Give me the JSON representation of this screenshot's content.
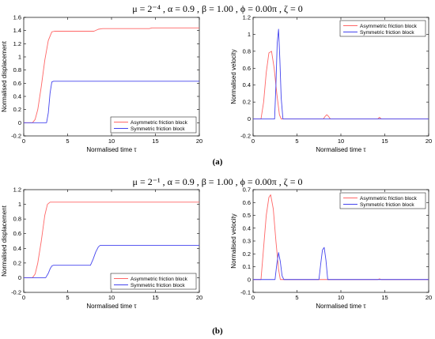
{
  "figure": {
    "panels": [
      {
        "title": "μ = 2⁻⁴ , α = 0.9 , β = 1.00 , ϕ = 0.00π , ζ = 0",
        "caption": "(a)"
      },
      {
        "title": "μ = 2⁻¹ , α = 0.9 , β = 1.00 , ϕ = 0.00π , ζ = 0",
        "caption": "(b)"
      }
    ]
  },
  "colors": {
    "asymmetric": "#ff6666",
    "symmetric": "#4444ee"
  },
  "chart_data": [
    {
      "type": "line",
      "xlabel": "Normalised time τ",
      "ylabel": "Normalised displacement",
      "xlim": [
        0,
        20
      ],
      "ylim": [
        -0.2,
        1.6
      ],
      "xticks": [
        0,
        5,
        10,
        15,
        20
      ],
      "yticks": [
        -0.2,
        0,
        0.2,
        0.4,
        0.6,
        0.8,
        1,
        1.2,
        1.4,
        1.6
      ],
      "legend": "bottom-right",
      "series": [
        {
          "name": "Asymmetric friction block",
          "color": "#ff6666",
          "x": [
            0,
            1.0,
            1.3,
            1.6,
            2.0,
            2.4,
            2.8,
            3.2,
            3.5,
            8.0,
            8.5,
            9.0,
            14.3,
            14.6,
            20
          ],
          "y": [
            0,
            0,
            0.05,
            0.2,
            0.55,
            0.95,
            1.25,
            1.38,
            1.39,
            1.39,
            1.42,
            1.43,
            1.43,
            1.44,
            1.44
          ]
        },
        {
          "name": "Symmetric friction block",
          "color": "#4444ee",
          "x": [
            0,
            2.6,
            2.8,
            3.0,
            3.2,
            3.4,
            20
          ],
          "y": [
            0,
            0,
            0.15,
            0.45,
            0.62,
            0.63,
            0.63
          ]
        }
      ]
    },
    {
      "type": "line",
      "xlabel": "Normalised time τ",
      "ylabel": "Normalised velocity",
      "xlim": [
        0,
        20
      ],
      "ylim": [
        -0.2,
        1.2
      ],
      "xticks": [
        0,
        5,
        10,
        15,
        20
      ],
      "yticks": [
        -0.2,
        0,
        0.2,
        0.4,
        0.6,
        0.8,
        1,
        1.2
      ],
      "legend": "top-right",
      "series": [
        {
          "name": "Asymmetric friction block",
          "color": "#ff6666",
          "x": [
            0,
            0.9,
            1.2,
            1.5,
            1.8,
            2.1,
            2.4,
            2.7,
            3.0,
            3.2,
            8.0,
            8.2,
            8.4,
            8.6,
            8.8,
            14.2,
            14.4,
            14.6,
            20
          ],
          "y": [
            0,
            0,
            0.2,
            0.55,
            0.78,
            0.8,
            0.6,
            0.3,
            0.05,
            0,
            0,
            0.03,
            0.05,
            0.03,
            0,
            0,
            0.02,
            0,
            0
          ]
        },
        {
          "name": "Symmetric friction block",
          "color": "#4444ee",
          "x": [
            0,
            2.45,
            2.6,
            2.75,
            2.9,
            3.05,
            3.2,
            3.4,
            20
          ],
          "y": [
            0,
            0,
            0.4,
            0.9,
            1.06,
            0.7,
            0.25,
            0,
            0
          ]
        }
      ]
    },
    {
      "type": "line",
      "xlabel": "Normalised time τ",
      "ylabel": "Normalised displacement",
      "xlim": [
        0,
        20
      ],
      "ylim": [
        -0.2,
        1.2
      ],
      "xticks": [
        0,
        5,
        10,
        15,
        20
      ],
      "yticks": [
        -0.2,
        0,
        0.2,
        0.4,
        0.6,
        0.8,
        1,
        1.2
      ],
      "legend": "bottom-right",
      "series": [
        {
          "name": "Asymmetric friction block",
          "color": "#ff6666",
          "x": [
            0,
            1.0,
            1.3,
            1.6,
            2.0,
            2.4,
            2.7,
            3.0,
            20
          ],
          "y": [
            0,
            0,
            0.05,
            0.2,
            0.5,
            0.85,
            1.0,
            1.03,
            1.03
          ]
        },
        {
          "name": "Symmetric friction block",
          "color": "#4444ee",
          "x": [
            0,
            2.5,
            2.8,
            3.0,
            3.2,
            3.4,
            7.6,
            7.9,
            8.2,
            8.5,
            8.7,
            20
          ],
          "y": [
            0,
            0,
            0.06,
            0.12,
            0.16,
            0.17,
            0.17,
            0.25,
            0.35,
            0.42,
            0.44,
            0.44
          ]
        }
      ]
    },
    {
      "type": "line",
      "xlabel": "Normalised time τ",
      "ylabel": "Normalised velocity",
      "xlim": [
        0,
        20
      ],
      "ylim": [
        -0.1,
        0.7
      ],
      "xticks": [
        0,
        5,
        10,
        15,
        20
      ],
      "yticks": [
        -0.1,
        0,
        0.1,
        0.2,
        0.3,
        0.4,
        0.5,
        0.6,
        0.7
      ],
      "legend": "top-right",
      "series": [
        {
          "name": "Asymmetric friction block",
          "color": "#ff6666",
          "x": [
            0,
            0.9,
            1.2,
            1.5,
            1.8,
            2.0,
            2.3,
            2.6,
            2.9,
            3.1,
            14.2,
            14.4,
            14.6,
            20
          ],
          "y": [
            0,
            0,
            0.25,
            0.5,
            0.64,
            0.66,
            0.55,
            0.3,
            0.08,
            0,
            0,
            0.005,
            0,
            0
          ]
        },
        {
          "name": "Symmetric friction block",
          "color": "#4444ee",
          "x": [
            0,
            2.5,
            2.7,
            2.9,
            3.1,
            3.3,
            3.5,
            7.5,
            7.7,
            7.9,
            8.1,
            8.3,
            8.5,
            20
          ],
          "y": [
            0,
            0,
            0.12,
            0.21,
            0.14,
            0.03,
            0,
            0,
            0.12,
            0.23,
            0.25,
            0.15,
            0,
            0
          ]
        }
      ]
    }
  ]
}
